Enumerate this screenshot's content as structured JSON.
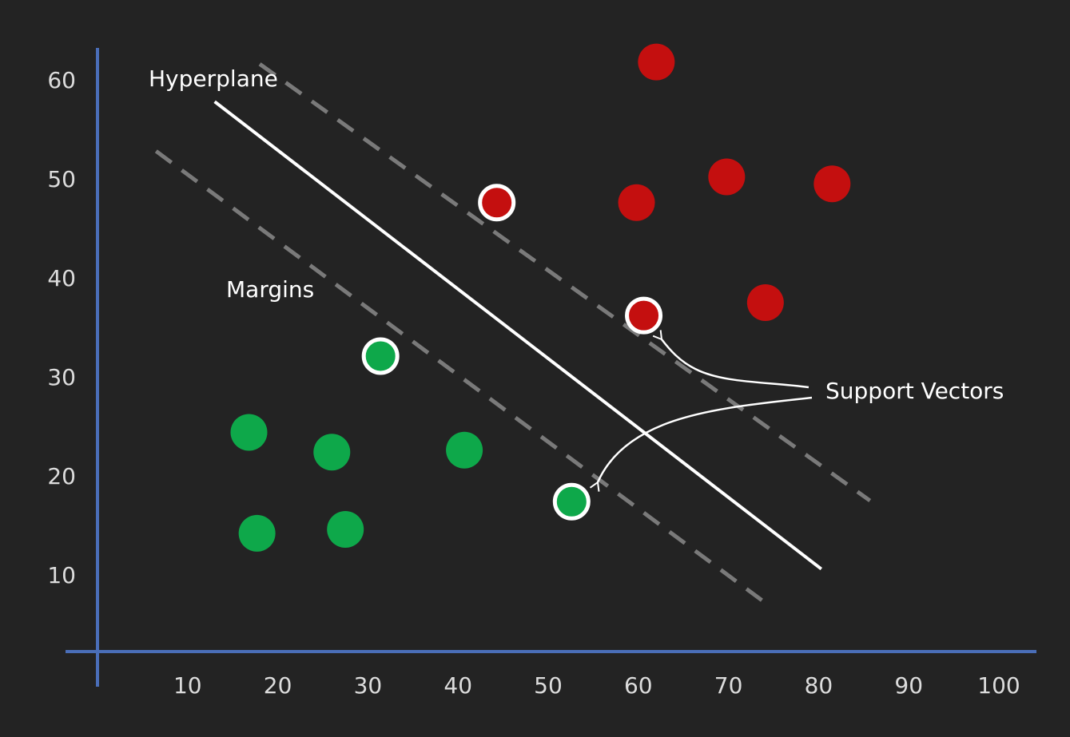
{
  "chart_data": {
    "type": "scatter",
    "title": "",
    "xlabel": "",
    "ylabel": "",
    "xlim": [
      0,
      100
    ],
    "ylim": [
      3,
      63
    ],
    "x_ticks": [
      "10",
      "20",
      "30",
      "40",
      "50",
      "60",
      "70",
      "80",
      "90",
      "100"
    ],
    "y_ticks": [
      "10",
      "20",
      "30",
      "40",
      "50",
      "60"
    ],
    "grid": false,
    "series": [
      {
        "color": "#c40f0f",
        "points": [
          {
            "x": 62,
            "y": 61.8,
            "support_vector": false
          },
          {
            "x": 44.3,
            "y": 47.6,
            "support_vector": true
          },
          {
            "x": 59.8,
            "y": 47.6,
            "support_vector": false
          },
          {
            "x": 69.8,
            "y": 50.2,
            "support_vector": false
          },
          {
            "x": 81.5,
            "y": 49.5,
            "support_vector": false
          },
          {
            "x": 60.6,
            "y": 36.2,
            "support_vector": true
          },
          {
            "x": 74.1,
            "y": 37.5,
            "support_vector": false
          }
        ]
      },
      {
        "color": "#0ea84a",
        "points": [
          {
            "x": 31.4,
            "y": 32.1,
            "support_vector": true
          },
          {
            "x": 16.8,
            "y": 24.4,
            "support_vector": false
          },
          {
            "x": 26,
            "y": 22.4,
            "support_vector": false
          },
          {
            "x": 40.7,
            "y": 22.6,
            "support_vector": false
          },
          {
            "x": 52.6,
            "y": 17.4,
            "support_vector": true
          },
          {
            "x": 17.7,
            "y": 14.2,
            "support_vector": false
          },
          {
            "x": 27.5,
            "y": 14.6,
            "support_vector": false
          }
        ]
      }
    ],
    "lines": [
      {
        "role": "hyperplane",
        "style": "solid",
        "from": [
          13,
          57.8
        ],
        "to": [
          80.3,
          10.6
        ]
      },
      {
        "role": "margin",
        "style": "dashed",
        "from": [
          18,
          61.6
        ],
        "to": [
          85.7,
          17.5
        ]
      },
      {
        "role": "margin",
        "style": "dashed",
        "from": [
          6.5,
          52.8
        ],
        "to": [
          74.5,
          6.9
        ]
      }
    ],
    "annotations": {
      "hyperplane": "Hyperplane",
      "margins": "Margins",
      "support_vectors": "Support Vectors"
    },
    "colors": {
      "background": "#232323",
      "axis": "#4a6eb8",
      "text": "#dcdcdc",
      "hyperplane": "#ffffff",
      "margin": "#7a7a7a"
    }
  }
}
